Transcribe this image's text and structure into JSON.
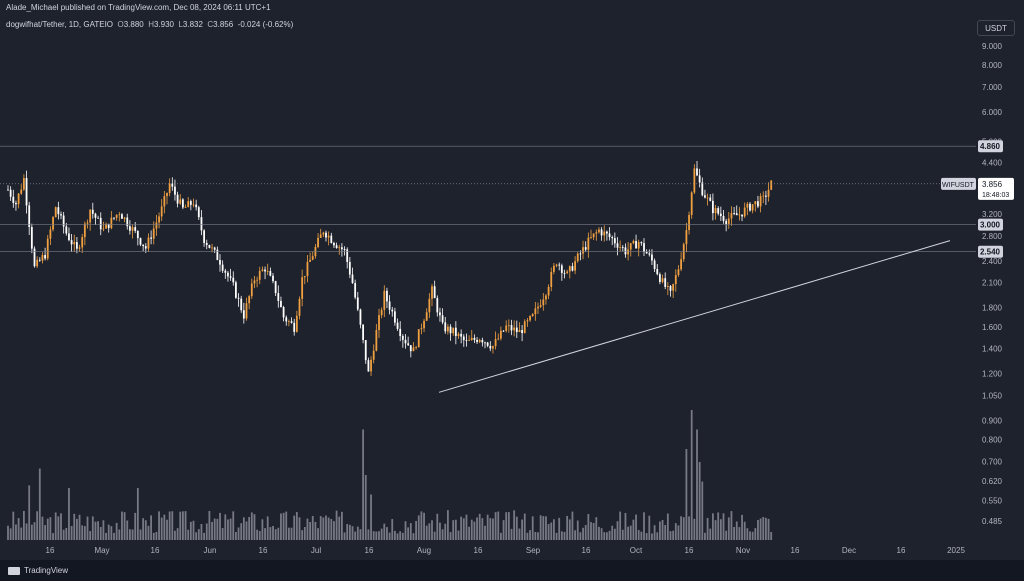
{
  "header": {
    "publisher_line": "Alade_Michael published on TradingView.com, Dec 08, 2024 06:11 UTC+1"
  },
  "symbol_bar": {
    "name": "dogwifhat/Tether, 1D, GATEIO",
    "open_label": "O",
    "open": "3.880",
    "high_label": "H",
    "high": "3.930",
    "low_label": "L",
    "low": "3.832",
    "close_label": "C",
    "close": "3.856",
    "change": "-0.024 (-0.62%)"
  },
  "currency_button": "USDT",
  "footer": {
    "logo_text": "TradingView"
  },
  "colors": {
    "up": "#f0a040",
    "down": "#ffffff",
    "line": "#d1d4dc",
    "volume": "#9598a1",
    "background": "#1e222d"
  },
  "chart_data": {
    "type": "candlestick",
    "y_scale": "log",
    "y_ticks": [
      "9.000",
      "8.000",
      "7.000",
      "6.000",
      "5.000",
      "4.400",
      "3.200",
      "2.800",
      "2.400",
      "2.100",
      "1.800",
      "1.600",
      "1.400",
      "1.200",
      "1.050",
      "0.900",
      "0.800",
      "0.700",
      "0.620",
      "0.550",
      "0.485"
    ],
    "x_ticks": [
      "16",
      "May",
      "16",
      "Jun",
      "16",
      "Jul",
      "16",
      "Aug",
      "16",
      "Sep",
      "16",
      "Oct",
      "16",
      "Nov",
      "16",
      "Dec",
      "16",
      "2025"
    ],
    "price_labels": [
      {
        "text": "4.860",
        "value": 4.86,
        "style": "box"
      },
      {
        "text": "3.000",
        "value": 3.0,
        "style": "box"
      },
      {
        "text": "2.540",
        "value": 2.54,
        "style": "box"
      }
    ],
    "last_price": {
      "symbol": "WIFUSDT",
      "value": 3.856,
      "text": "3.856",
      "countdown": "18:48:03"
    },
    "horizontal_levels": [
      4.86,
      3.856,
      3.0,
      2.54
    ],
    "trendline": {
      "from": {
        "date": "Aug 05",
        "price": 1.07
      },
      "to": {
        "date": "Dec 28",
        "price": 2.72
      }
    },
    "path_points": [
      {
        "d": 0,
        "p": 3.72
      },
      {
        "d": 3,
        "p": 3.42
      },
      {
        "d": 6,
        "p": 3.98
      },
      {
        "d": 10,
        "p": 2.3
      },
      {
        "d": 14,
        "p": 2.5
      },
      {
        "d": 18,
        "p": 3.35
      },
      {
        "d": 22,
        "p": 2.85
      },
      {
        "d": 26,
        "p": 2.55
      },
      {
        "d": 31,
        "p": 3.3
      },
      {
        "d": 36,
        "p": 2.9
      },
      {
        "d": 42,
        "p": 3.25
      },
      {
        "d": 48,
        "p": 2.85
      },
      {
        "d": 52,
        "p": 2.6
      },
      {
        "d": 58,
        "p": 3.3
      },
      {
        "d": 61,
        "p": 3.85
      },
      {
        "d": 66,
        "p": 3.3
      },
      {
        "d": 70,
        "p": 3.45
      },
      {
        "d": 74,
        "p": 2.75
      },
      {
        "d": 80,
        "p": 2.4
      },
      {
        "d": 85,
        "p": 2.05
      },
      {
        "d": 89,
        "p": 1.72
      },
      {
        "d": 93,
        "p": 2.15
      },
      {
        "d": 97,
        "p": 2.3
      },
      {
        "d": 101,
        "p": 2.0
      },
      {
        "d": 104,
        "p": 1.7
      },
      {
        "d": 108,
        "p": 1.6
      },
      {
        "d": 111,
        "p": 2.15
      },
      {
        "d": 115,
        "p": 2.5
      },
      {
        "d": 119,
        "p": 2.9
      },
      {
        "d": 123,
        "p": 2.7
      },
      {
        "d": 127,
        "p": 2.55
      },
      {
        "d": 130,
        "p": 2.1
      },
      {
        "d": 133,
        "p": 1.6
      },
      {
        "d": 136,
        "p": 1.2
      },
      {
        "d": 139,
        "p": 1.55
      },
      {
        "d": 142,
        "p": 1.95
      },
      {
        "d": 145,
        "p": 1.75
      },
      {
        "d": 149,
        "p": 1.5
      },
      {
        "d": 153,
        "p": 1.38
      },
      {
        "d": 157,
        "p": 1.7
      },
      {
        "d": 160,
        "p": 2.0
      },
      {
        "d": 164,
        "p": 1.6
      },
      {
        "d": 168,
        "p": 1.55
      },
      {
        "d": 173,
        "p": 1.45
      },
      {
        "d": 178,
        "p": 1.5
      },
      {
        "d": 183,
        "p": 1.42
      },
      {
        "d": 188,
        "p": 1.6
      },
      {
        "d": 193,
        "p": 1.55
      },
      {
        "d": 198,
        "p": 1.7
      },
      {
        "d": 203,
        "p": 2.0
      },
      {
        "d": 207,
        "p": 2.4
      },
      {
        "d": 211,
        "p": 2.2
      },
      {
        "d": 215,
        "p": 2.45
      },
      {
        "d": 219,
        "p": 2.7
      },
      {
        "d": 223,
        "p": 2.9
      },
      {
        "d": 228,
        "p": 2.75
      },
      {
        "d": 233,
        "p": 2.55
      },
      {
        "d": 238,
        "p": 2.7
      },
      {
        "d": 243,
        "p": 2.4
      },
      {
        "d": 247,
        "p": 2.1
      },
      {
        "d": 250,
        "p": 1.95
      },
      {
        "d": 253,
        "p": 2.3
      },
      {
        "d": 256,
        "p": 2.9
      },
      {
        "d": 259,
        "p": 4.2
      },
      {
        "d": 262,
        "p": 3.7
      },
      {
        "d": 266,
        "p": 3.3
      },
      {
        "d": 271,
        "p": 3.1
      },
      {
        "d": 276,
        "p": 3.2
      },
      {
        "d": 281,
        "p": 3.4
      },
      {
        "d": 285,
        "p": 3.5
      },
      {
        "d": 288,
        "p": 3.856
      }
    ],
    "volume_scale": "relative",
    "volume_spikes": [
      {
        "d": 12,
        "v": 0.55
      },
      {
        "d": 8,
        "v": 0.42
      },
      {
        "d": 23,
        "v": 0.4
      },
      {
        "d": 49,
        "v": 0.4
      },
      {
        "d": 134,
        "v": 0.85
      },
      {
        "d": 135,
        "v": 0.5
      },
      {
        "d": 137,
        "v": 0.35
      },
      {
        "d": 156,
        "v": 0.22
      },
      {
        "d": 256,
        "v": 0.7
      },
      {
        "d": 258,
        "v": 1.0
      },
      {
        "d": 260,
        "v": 0.85
      },
      {
        "d": 261,
        "v": 0.6
      },
      {
        "d": 262,
        "v": 0.45
      }
    ]
  }
}
